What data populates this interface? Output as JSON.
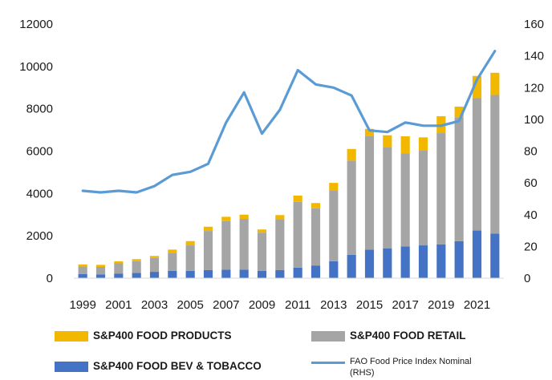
{
  "chart_data": {
    "type": "bar",
    "stacked": true,
    "categories": [
      "1999",
      "2000",
      "2001",
      "2002",
      "2003",
      "2004",
      "2005",
      "2006",
      "2007",
      "2008",
      "2009",
      "2010",
      "2011",
      "2012",
      "2013",
      "2014",
      "2015",
      "2016",
      "2017",
      "2018",
      "2019",
      "2020",
      "2021",
      "2022"
    ],
    "x_tick_labels": [
      "1999",
      "2001",
      "2003",
      "2005",
      "2007",
      "2009",
      "2011",
      "2013",
      "2015",
      "2017",
      "2019",
      "2021"
    ],
    "y_left_ticks": [
      "0",
      "2000",
      "4000",
      "6000",
      "8000",
      "10000",
      "12000"
    ],
    "y_right_ticks": [
      "0",
      "20",
      "40",
      "60",
      "80",
      "100",
      "120",
      "140",
      "160"
    ],
    "ylim_left": [
      0,
      12000
    ],
    "ylim_right": [
      0,
      160
    ],
    "series": [
      {
        "name": "S&P400 FOOD BEV & TOBACCO",
        "color": "#4472c4",
        "kind": "bar",
        "values": [
          200,
          180,
          220,
          250,
          300,
          350,
          350,
          380,
          400,
          400,
          350,
          380,
          500,
          600,
          800,
          1100,
          1350,
          1400,
          1500,
          1550,
          1600,
          1750,
          2250,
          2100
        ]
      },
      {
        "name": "S&P400 FOOD RETAIL",
        "color": "#a5a5a5",
        "kind": "bar",
        "values": [
          350,
          350,
          480,
          550,
          650,
          850,
          1200,
          1850,
          2300,
          2400,
          1800,
          2400,
          3100,
          2700,
          3350,
          4450,
          5350,
          4800,
          4400,
          4500,
          5250,
          5850,
          6250,
          6550
        ]
      },
      {
        "name": "S&P400 FOOD PRODUCTS",
        "color": "#f2b800",
        "kind": "bar",
        "values": [
          100,
          100,
          100,
          100,
          100,
          150,
          200,
          200,
          200,
          200,
          150,
          200,
          300,
          250,
          350,
          550,
          350,
          550,
          800,
          600,
          800,
          500,
          1050,
          1050
        ]
      },
      {
        "name": "FAO Food Price Index Nominal (RHS)",
        "color": "#5b9bd5",
        "kind": "line",
        "axis": "right",
        "values": [
          55,
          54,
          55,
          54,
          58,
          65,
          67,
          72,
          98,
          117,
          91,
          106,
          131,
          122,
          120,
          115,
          93,
          92,
          98,
          96,
          96,
          99,
          125,
          143
        ]
      }
    ],
    "legend": {
      "food_products": "S&P400 FOOD PRODUCTS",
      "food_retail": "S&P400 FOOD RETAIL",
      "bev_tobacco": "S&P400 FOOD BEV & TOBACCO",
      "fao_line1": "FAO Food Price Index Nominal",
      "fao_line2": "(RHS)"
    },
    "grid": false,
    "legend_position": "bottom"
  }
}
